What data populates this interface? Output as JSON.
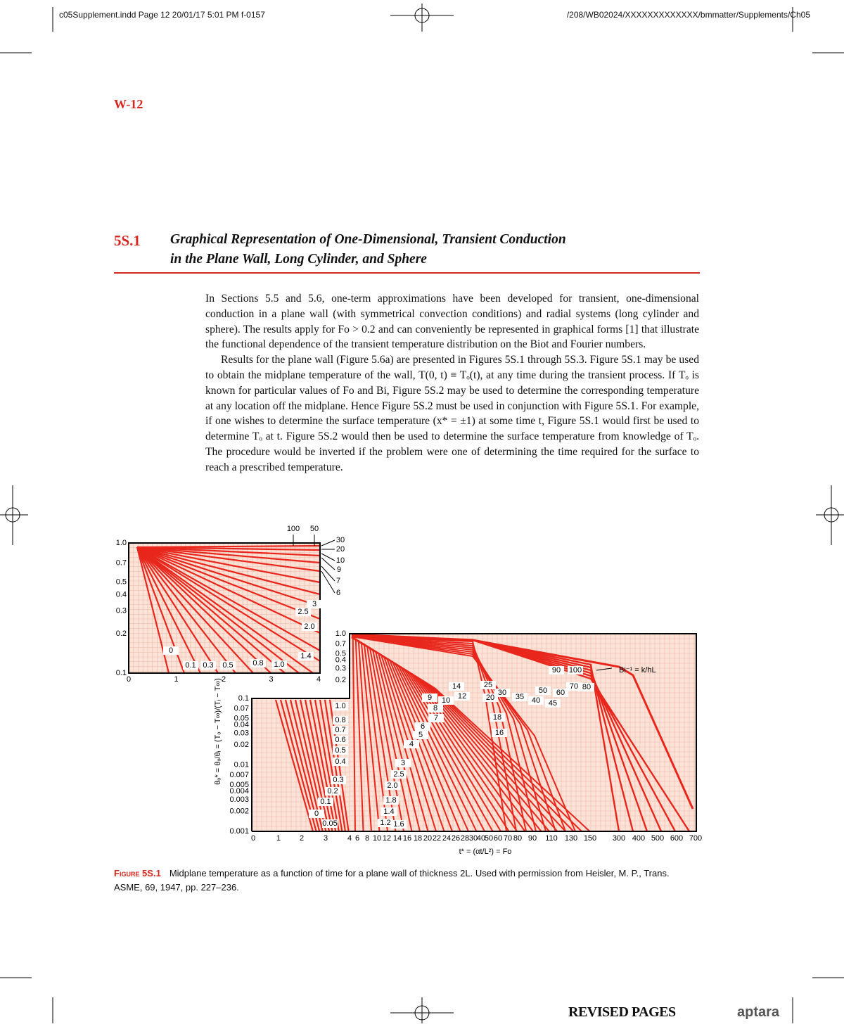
{
  "header": {
    "slug": "c05Supplement.indd Page 12  20/01/17  5:01 PM f-0157",
    "path": "/208/WB02024/XXXXXXXXXXXXX/bmmatter/Supplements/Ch05"
  },
  "page_label": "W-12",
  "section": {
    "number": "5S.1",
    "title_line1": "Graphical Representation of One-Dimensional, Transient Conduction",
    "title_line2": "in the Plane Wall, Long Cylinder, and Sphere"
  },
  "paragraphs": [
    "In Sections 5.5 and 5.6, one-term approximations have been developed for transient, one-dimensional conduction in a plane wall (with symmetrical convection conditions) and radial systems (long cylinder and sphere). The results apply for Fo > 0.2 and can conveniently be represented in graphical forms [1] that illustrate the functional dependence of the transient temperature distribution on the Biot and Fourier numbers.",
    "Results for the plane wall (Figure 5.6a) are presented in Figures 5S.1 through 5S.3. Figure 5S.1 may be used to obtain the midplane temperature of the wall, T(0, t) ≡ Tₒ(t), at any time during the transient process. If Tₒ is known for particular values of Fo and Bi, Figure 5S.2 may be used to determine the corresponding temperature at any location off the midplane. Hence Figure 5S.2 must be used in conjunction with Figure 5S.1. For example, if one wishes to determine the surface temperature (x* = ±1) at some time t, Figure 5S.1 would first be used to determine Tₒ at t. Figure 5S.2 would then be used to determine the surface temperature from knowledge of Tₒ. The procedure would be inverted if the problem were one of determining the time required for the surface to reach a prescribed temperature."
  ],
  "figure": {
    "inset": {
      "xticks": [
        "0",
        "1",
        "2",
        "3",
        "4"
      ],
      "yticks": [
        "1.0",
        "0.7",
        "0.5",
        "0.4",
        "0.3",
        "0.2",
        "0.1"
      ],
      "curve_labels": [
        "100",
        "50",
        "30",
        "20",
        "10",
        "9",
        "7",
        "6",
        "3",
        "2.5",
        "2.0",
        "1.4",
        "0",
        "0.1",
        "0.3",
        "0.5",
        "0.8",
        "1.0"
      ]
    },
    "main": {
      "xticks": [
        "0",
        "1",
        "2",
        "3",
        "4",
        "6",
        "8",
        "10",
        "12",
        "14",
        "16",
        "18",
        "20",
        "22",
        "24",
        "26",
        "28",
        "30",
        "40",
        "50",
        "60",
        "70",
        "80",
        "90",
        "110",
        "130",
        "150",
        "300",
        "400",
        "500",
        "600",
        "700"
      ],
      "yticks_upper": [
        "1.0",
        "0.7",
        "0.5",
        "0.4",
        "0.3",
        "0.2"
      ],
      "yticks_lower": [
        "0.1",
        "0.07",
        "0.05",
        "0.04",
        "0.03",
        "0.02",
        "0.01",
        "0.007",
        "0.005",
        "0.004",
        "0.003",
        "0.002",
        "0.001"
      ],
      "xlabel": "t* = (αt/L²) = Fo",
      "ylabel": "θₒ* = θₒ/θᵢ = (Tₒ − T∞)/(Tᵢ − T∞)",
      "curve_labels": [
        "1.0",
        "0.8",
        "0.7",
        "0.6",
        "0.5",
        "0.4",
        "0.3",
        "0.2",
        "0.1",
        "0",
        "0.05",
        "1.2",
        "1.4",
        "1.6",
        "1.8",
        "2.0",
        "2.5",
        "3",
        "4",
        "5",
        "6",
        "7",
        "8",
        "9",
        "10",
        "12",
        "14",
        "16",
        "18",
        "20",
        "25",
        "30",
        "35",
        "40",
        "45",
        "50",
        "60",
        "70",
        "80",
        "90",
        "100",
        "Bi⁻¹ = k/hL"
      ]
    }
  },
  "caption": {
    "label": "Figure 5S.1",
    "text": "Midplane temperature as a function of time for a plane wall of thickness 2L. Used with permission from Heisler, M. P., Trans. ASME, 69, 1947, pp. 227–236."
  },
  "footer": {
    "revised": "REVISED PAGES",
    "logo": "aptara"
  }
}
